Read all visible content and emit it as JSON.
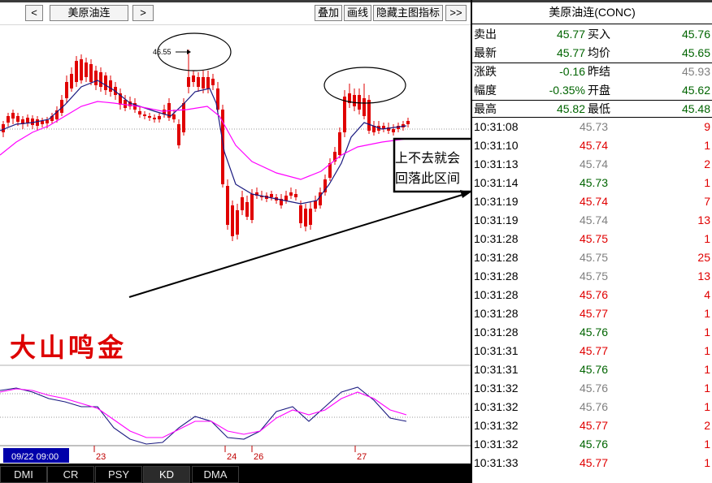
{
  "toolbar": {
    "prev": "<",
    "symbol": "美原油连",
    "next": ">",
    "overlay": "叠加",
    "draw": "画线",
    "hide_main": "隐藏主图指标",
    "more": ">>"
  },
  "chart": {
    "high_marker": "46.55",
    "annotation_line1": "上不去就会",
    "annotation_line2": "回落此区间",
    "watermark": "大山鸣金",
    "date_box": "09/22 09:00",
    "date_ticks": [
      "23",
      "24",
      "26",
      "27"
    ]
  },
  "indicator_tabs": [
    "DMI",
    "CR",
    "PSY",
    "KD",
    "DMA"
  ],
  "active_tab": "KD",
  "panel": {
    "title": "美原油连(CONC)",
    "quotes": [
      {
        "label1": "卖出",
        "value1": "45.77",
        "label2": "买入",
        "value2": "45.76",
        "c1": "green",
        "c2": "green"
      },
      {
        "label1": "最新",
        "value1": "45.77",
        "label2": "均价",
        "value2": "45.65",
        "c1": "green",
        "c2": "green"
      },
      {
        "label1": "涨跌",
        "value1": "-0.16",
        "label2": "昨结",
        "value2": "45.93",
        "c1": "green",
        "c2": "gray"
      },
      {
        "label1": "幅度",
        "value1": "-0.35%",
        "label2": "开盘",
        "value2": "45.62",
        "c1": "green",
        "c2": "green"
      },
      {
        "label1": "最高",
        "value1": "45.82",
        "label2": "最低",
        "value2": "45.48",
        "c1": "green",
        "c2": "green"
      }
    ],
    "ticks": [
      {
        "time": "10:31:08",
        "price": "45.73",
        "vol": "9",
        "pc": "gray"
      },
      {
        "time": "10:31:10",
        "price": "45.74",
        "vol": "1",
        "pc": "red"
      },
      {
        "time": "10:31:13",
        "price": "45.74",
        "vol": "2",
        "pc": "gray"
      },
      {
        "time": "10:31:14",
        "price": "45.73",
        "vol": "1",
        "pc": "green"
      },
      {
        "time": "10:31:19",
        "price": "45.74",
        "vol": "7",
        "pc": "red"
      },
      {
        "time": "10:31:19",
        "price": "45.74",
        "vol": "13",
        "pc": "gray"
      },
      {
        "time": "10:31:28",
        "price": "45.75",
        "vol": "1",
        "pc": "red"
      },
      {
        "time": "10:31:28",
        "price": "45.75",
        "vol": "25",
        "pc": "gray"
      },
      {
        "time": "10:31:28",
        "price": "45.75",
        "vol": "13",
        "pc": "gray"
      },
      {
        "time": "10:31:28",
        "price": "45.76",
        "vol": "4",
        "pc": "red"
      },
      {
        "time": "10:31:28",
        "price": "45.77",
        "vol": "1",
        "pc": "red"
      },
      {
        "time": "10:31:28",
        "price": "45.76",
        "vol": "1",
        "pc": "green"
      },
      {
        "time": "10:31:31",
        "price": "45.77",
        "vol": "1",
        "pc": "red"
      },
      {
        "time": "10:31:31",
        "price": "45.76",
        "vol": "1",
        "pc": "green"
      },
      {
        "time": "10:31:32",
        "price": "45.76",
        "vol": "1",
        "pc": "gray"
      },
      {
        "time": "10:31:32",
        "price": "45.76",
        "vol": "1",
        "pc": "gray"
      },
      {
        "time": "10:31:32",
        "price": "45.77",
        "vol": "2",
        "pc": "red"
      },
      {
        "time": "10:31:32",
        "price": "45.76",
        "vol": "1",
        "pc": "green"
      },
      {
        "time": "10:31:33",
        "price": "45.77",
        "vol": "1",
        "pc": "red"
      }
    ]
  },
  "colors": {
    "up": "#e00000",
    "down": "#008000",
    "ma_short": "#1a1a80",
    "ma_long": "#ff00ff",
    "annotation": "#000000"
  }
}
